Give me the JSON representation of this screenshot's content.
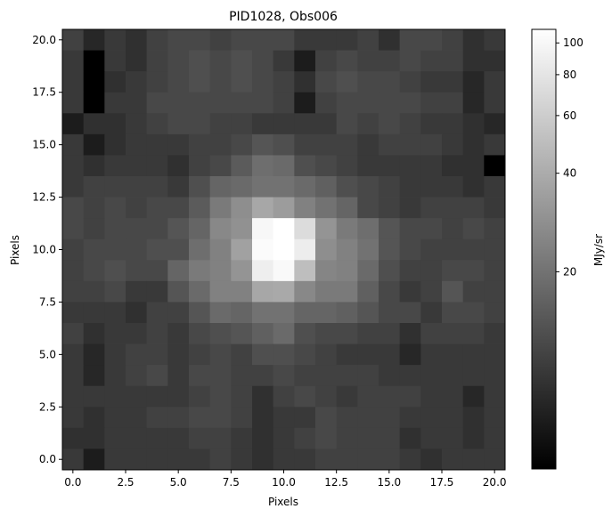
{
  "chart_data": {
    "type": "heatmap",
    "title": "PID1028, Obs006",
    "xlabel": "Pixels",
    "ylabel": "Pixels",
    "colorbar_label": "MJy/sr",
    "colormap": "gray",
    "color_scale": "log",
    "xlim": [
      -0.5,
      20.5
    ],
    "ylim": [
      -0.5,
      20.5
    ],
    "x_ticks": [
      "0.0",
      "2.5",
      "5.0",
      "7.5",
      "10.0",
      "12.5",
      "15.0",
      "17.5",
      "20.0"
    ],
    "x_tick_values": [
      0,
      2.5,
      5,
      7.5,
      10,
      12.5,
      15,
      17.5,
      20
    ],
    "y_ticks": [
      "0.0",
      "2.5",
      "5.0",
      "7.5",
      "10.0",
      "12.5",
      "15.0",
      "17.5",
      "20.0"
    ],
    "y_tick_values": [
      0,
      2.5,
      5,
      7.5,
      10,
      12.5,
      15,
      17.5,
      20
    ],
    "colorbar_ticks": [
      "100",
      "80",
      "60",
      "40",
      "20"
    ],
    "colorbar_tick_values": [
      100,
      80,
      60,
      40,
      20
    ],
    "colorbar_range": [
      5,
      110
    ],
    "grid": false,
    "rows_top_to_bottom": [
      [
        11,
        8,
        10,
        9,
        11,
        12,
        12,
        11,
        12,
        12,
        12,
        10,
        10,
        10,
        11,
        9,
        12,
        12,
        11,
        9,
        10
      ],
      [
        10,
        5,
        10,
        9,
        11,
        12,
        13,
        12,
        13,
        12,
        10,
        7,
        11,
        12,
        11,
        11,
        12,
        11,
        11,
        9,
        9
      ],
      [
        10,
        5,
        9,
        10,
        11,
        12,
        13,
        12,
        13,
        12,
        11,
        9,
        12,
        13,
        12,
        12,
        11,
        10,
        10,
        8,
        10
      ],
      [
        10,
        5,
        10,
        10,
        12,
        12,
        12,
        12,
        12,
        12,
        11,
        7,
        11,
        12,
        12,
        12,
        12,
        11,
        11,
        8,
        10
      ],
      [
        7,
        9,
        9,
        10,
        11,
        12,
        12,
        11,
        11,
        10,
        10,
        10,
        10,
        12,
        11,
        12,
        11,
        10,
        10,
        9,
        8
      ],
      [
        10,
        7,
        9,
        10,
        10,
        10,
        11,
        11,
        12,
        14,
        13,
        11,
        11,
        11,
        10,
        11,
        11,
        11,
        10,
        9,
        10
      ],
      [
        10,
        9,
        10,
        10,
        10,
        9,
        11,
        12,
        15,
        19,
        18,
        13,
        12,
        11,
        10,
        10,
        10,
        10,
        9,
        9,
        5
      ],
      [
        10,
        11,
        11,
        11,
        11,
        10,
        13,
        17,
        18,
        20,
        20,
        18,
        16,
        13,
        12,
        11,
        10,
        10,
        10,
        9,
        10
      ],
      [
        12,
        11,
        12,
        11,
        12,
        12,
        15,
        22,
        28,
        38,
        33,
        24,
        20,
        17,
        12,
        11,
        10,
        11,
        11,
        11,
        10
      ],
      [
        12,
        11,
        12,
        12,
        12,
        14,
        17,
        26,
        29,
        100,
        110,
        72,
        30,
        22,
        19,
        14,
        12,
        12,
        11,
        12,
        11
      ],
      [
        11,
        12,
        12,
        12,
        13,
        13,
        19,
        24,
        35,
        105,
        110,
        88,
        28,
        24,
        20,
        14,
        12,
        11,
        11,
        11,
        11
      ],
      [
        11,
        12,
        13,
        12,
        12,
        17,
        22,
        24,
        30,
        90,
        102,
        50,
        25,
        24,
        18,
        13,
        11,
        11,
        12,
        12,
        11
      ],
      [
        11,
        11,
        12,
        10,
        10,
        14,
        18,
        24,
        24,
        38,
        39,
        26,
        22,
        22,
        16,
        12,
        10,
        11,
        14,
        11,
        11
      ],
      [
        10,
        10,
        10,
        9,
        11,
        11,
        14,
        18,
        17,
        20,
        20,
        17,
        17,
        16,
        14,
        12,
        12,
        10,
        12,
        12,
        11
      ],
      [
        11,
        9,
        10,
        10,
        11,
        10,
        12,
        13,
        14,
        16,
        18,
        13,
        12,
        12,
        11,
        11,
        9,
        11,
        11,
        11,
        10
      ],
      [
        10,
        8,
        10,
        11,
        11,
        10,
        11,
        12,
        11,
        13,
        13,
        12,
        11,
        10,
        10,
        10,
        8,
        10,
        10,
        10,
        10
      ],
      [
        10,
        8,
        10,
        11,
        12,
        10,
        12,
        12,
        11,
        11,
        12,
        11,
        11,
        11,
        11,
        10,
        10,
        10,
        10,
        10,
        10
      ],
      [
        10,
        10,
        10,
        10,
        10,
        10,
        11,
        12,
        11,
        9,
        11,
        12,
        11,
        10,
        11,
        11,
        11,
        10,
        10,
        8,
        10
      ],
      [
        10,
        9,
        10,
        10,
        11,
        11,
        12,
        12,
        11,
        9,
        10,
        10,
        12,
        11,
        11,
        11,
        10,
        10,
        10,
        9,
        10
      ],
      [
        9,
        9,
        10,
        10,
        10,
        10,
        11,
        11,
        10,
        9,
        10,
        11,
        12,
        11,
        11,
        11,
        9,
        10,
        10,
        9,
        10
      ],
      [
        10,
        7,
        10,
        10,
        10,
        10,
        10,
        11,
        10,
        9,
        10,
        10,
        11,
        11,
        11,
        11,
        10,
        9,
        10,
        10,
        10
      ]
    ]
  }
}
